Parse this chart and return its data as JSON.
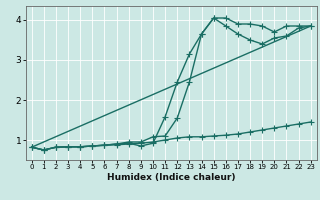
{
  "xlabel": "Humidex (Indice chaleur)",
  "bg_color": "#cce8e4",
  "line_color": "#1a6e64",
  "grid_color": "#ffffff",
  "xlim": [
    -0.5,
    23.5
  ],
  "ylim": [
    0.5,
    4.35
  ],
  "yticks": [
    1,
    2,
    3,
    4
  ],
  "xticks": [
    0,
    1,
    2,
    3,
    4,
    5,
    6,
    7,
    8,
    9,
    10,
    11,
    12,
    13,
    14,
    15,
    16,
    17,
    18,
    19,
    20,
    21,
    22,
    23
  ],
  "line1_x": [
    0,
    1,
    2,
    3,
    4,
    5,
    6,
    7,
    8,
    9,
    10,
    11,
    12,
    13,
    14,
    15,
    16,
    17,
    18,
    19,
    20,
    21,
    22,
    23
  ],
  "line1_y": [
    0.82,
    0.75,
    0.82,
    0.83,
    0.83,
    0.85,
    0.87,
    0.88,
    0.9,
    0.92,
    0.95,
    1.0,
    1.05,
    1.08,
    1.08,
    1.1,
    1.12,
    1.15,
    1.2,
    1.25,
    1.3,
    1.35,
    1.4,
    1.45
  ],
  "line2_x": [
    0,
    1,
    2,
    3,
    4,
    5,
    6,
    7,
    8,
    9,
    10,
    11,
    12,
    13,
    14,
    15,
    16,
    17,
    18,
    19,
    20,
    21,
    22,
    23
  ],
  "line2_y": [
    0.82,
    0.75,
    0.82,
    0.83,
    0.83,
    0.85,
    0.87,
    0.9,
    0.92,
    0.85,
    0.92,
    1.58,
    2.45,
    3.15,
    3.65,
    4.05,
    4.05,
    3.9,
    3.9,
    3.85,
    3.7,
    3.85,
    3.85,
    3.85
  ],
  "line3_x": [
    0,
    1,
    2,
    3,
    4,
    5,
    6,
    7,
    8,
    9,
    10,
    11,
    12,
    13,
    14,
    15,
    16,
    17,
    18,
    19,
    20,
    21,
    22,
    23
  ],
  "line3_y": [
    0.82,
    0.75,
    0.82,
    0.83,
    0.83,
    0.85,
    0.87,
    0.9,
    0.95,
    0.95,
    1.08,
    1.1,
    1.55,
    2.45,
    3.65,
    4.05,
    3.85,
    3.65,
    3.5,
    3.4,
    3.55,
    3.6,
    3.8,
    3.85
  ],
  "line4_x": [
    0,
    23
  ],
  "line4_y": [
    0.82,
    3.85
  ],
  "marker_size": 4,
  "linewidth": 1.0
}
